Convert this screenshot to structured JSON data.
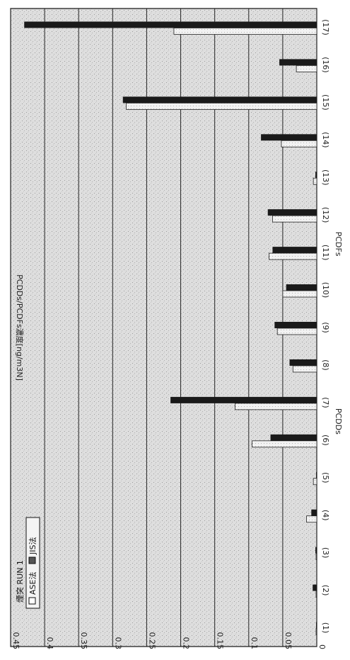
{
  "chart_data": {
    "type": "bar",
    "orientation": "horizontal",
    "title": "煙突 RUN 1",
    "ylabel": "PCDDs/PCDFs濃度[ng/m3N]",
    "group_labels": [
      "PCDDs",
      "PCDFs"
    ],
    "categories": [
      "(1)",
      "(2)",
      "(3)",
      "(4)",
      "(5)",
      "(6)",
      "(7)",
      "(8)",
      "(9)",
      "(10)",
      "(11)",
      "(12)",
      "(13)",
      "(14)",
      "(15)",
      "(16)",
      "(17)"
    ],
    "series": [
      {
        "name": "ASE法",
        "values": [
          0.001,
          0.001,
          0.001,
          0.015,
          0.005,
          0.095,
          0.12,
          0.035,
          0.058,
          0.05,
          0.07,
          0.065,
          0.005,
          0.052,
          0.28,
          0.03,
          0.21
        ]
      },
      {
        "name": "JIS法",
        "values": [
          0.001,
          0.006,
          0.002,
          0.008,
          0.001,
          0.068,
          0.215,
          0.04,
          0.062,
          0.045,
          0.065,
          0.072,
          0.002,
          0.082,
          0.285,
          0.055,
          0.43
        ]
      }
    ],
    "ylim": [
      0,
      0.45
    ],
    "yticks": [
      "0",
      "0.05",
      "0.1",
      "0.15",
      "0.2",
      "0.25",
      "0.3",
      "0.35",
      "0.4",
      "0.45"
    ],
    "grid": true,
    "legend_position": "top-left",
    "colors": {
      "ase": "#ececec",
      "jis": "#1a1a1a",
      "plot_bg": "#dcdcdc",
      "grid": "#222222"
    }
  }
}
